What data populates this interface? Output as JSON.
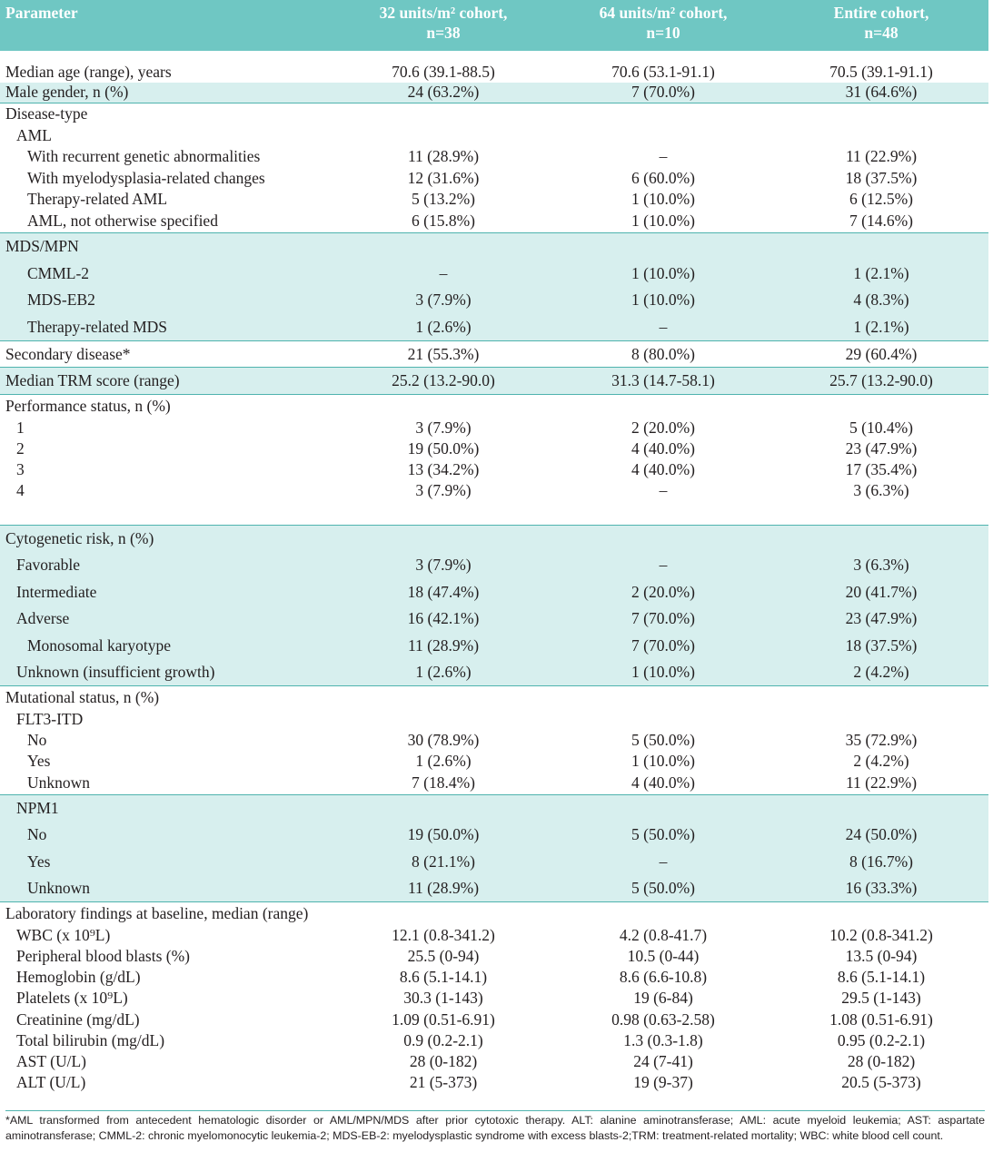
{
  "header": {
    "parameter": "Parameter",
    "col1_line1": "32 units/m² cohort,",
    "col1_line2": "n=38",
    "col2_line1": "64 units/m² cohort,",
    "col2_line2": "n=10",
    "col3_line1": "Entire cohort,",
    "col3_line2": "n=48"
  },
  "rows": [
    {
      "label": "Median age (range), years",
      "v1": "70.6 (39.1-88.5)",
      "v2": "70.6 (53.1-91.1)",
      "v3": "70.5 (39.1-91.1)"
    },
    {
      "label": "Male gender, n (%)",
      "v1": "24 (63.2%)",
      "v2": "7 (70.0%)",
      "v3": "31 (64.6%)"
    },
    {
      "label": "Disease-type",
      "v1": "",
      "v2": "",
      "v3": ""
    },
    {
      "label": "AML",
      "v1": "",
      "v2": "",
      "v3": ""
    },
    {
      "label": "With recurrent genetic abnormalities",
      "v1": "11 (28.9%)",
      "v2": "–",
      "v3": "11 (22.9%)"
    },
    {
      "label": "With myelodysplasia-related changes",
      "v1": "12 (31.6%)",
      "v2": "6 (60.0%)",
      "v3": "18 (37.5%)"
    },
    {
      "label": "Therapy-related AML",
      "v1": "5 (13.2%)",
      "v2": "1 (10.0%)",
      "v3": "6 (12.5%)"
    },
    {
      "label": "AML, not otherwise specified",
      "v1": "6 (15.8%)",
      "v2": "1 (10.0%)",
      "v3": "7 (14.6%)"
    },
    {
      "label": "MDS/MPN",
      "v1": "",
      "v2": "",
      "v3": ""
    },
    {
      "label": "CMML-2",
      "v1": "–",
      "v2": "1 (10.0%)",
      "v3": "1 (2.1%)"
    },
    {
      "label": "MDS-EB2",
      "v1": "3 (7.9%)",
      "v2": "1 (10.0%)",
      "v3": "4 (8.3%)"
    },
    {
      "label": "Therapy-related MDS",
      "v1": "1 (2.6%)",
      "v2": "–",
      "v3": "1 (2.1%)"
    },
    {
      "label": "Secondary disease*",
      "v1": "21 (55.3%)",
      "v2": "8 (80.0%)",
      "v3": "29 (60.4%)"
    },
    {
      "label": "Median TRM score (range)",
      "v1": "25.2 (13.2-90.0)",
      "v2": "31.3 (14.7-58.1)",
      "v3": "25.7 (13.2-90.0)"
    },
    {
      "label": "Performance status, n (%)",
      "v1": "",
      "v2": "",
      "v3": ""
    },
    {
      "label": "1",
      "v1": "3 (7.9%)",
      "v2": "2 (20.0%)",
      "v3": "5 (10.4%)"
    },
    {
      "label": "2",
      "v1": "19 (50.0%)",
      "v2": "4 (40.0%)",
      "v3": "23 (47.9%)"
    },
    {
      "label": "3",
      "v1": "13 (34.2%)",
      "v2": "4 (40.0%)",
      "v3": "17 (35.4%)"
    },
    {
      "label": "4",
      "v1": "3 (7.9%)",
      "v2": "–",
      "v3": "3 (6.3%)"
    },
    {
      "label": "Cytogenetic risk, n (%)",
      "v1": "",
      "v2": "",
      "v3": ""
    },
    {
      "label": "Favorable",
      "v1": "3 (7.9%)",
      "v2": "–",
      "v3": "3 (6.3%)"
    },
    {
      "label": "Intermediate",
      "v1": "18 (47.4%)",
      "v2": "2 (20.0%)",
      "v3": "20 (41.7%)"
    },
    {
      "label": "Adverse",
      "v1": "16 (42.1%)",
      "v2": "7 (70.0%)",
      "v3": "23 (47.9%)"
    },
    {
      "label": "Monosomal karyotype",
      "v1": "11 (28.9%)",
      "v2": "7 (70.0%)",
      "v3": "18 (37.5%)"
    },
    {
      "label": "Unknown (insufficient growth)",
      "v1": "1 (2.6%)",
      "v2": "1 (10.0%)",
      "v3": "2 (4.2%)"
    },
    {
      "label": "Mutational status, n (%)",
      "v1": "",
      "v2": "",
      "v3": ""
    },
    {
      "label": "FLT3-ITD",
      "v1": "",
      "v2": "",
      "v3": ""
    },
    {
      "label": "No",
      "v1": "30 (78.9%)",
      "v2": "5 (50.0%)",
      "v3": "35 (72.9%)"
    },
    {
      "label": "Yes",
      "v1": "1 (2.6%)",
      "v2": "1 (10.0%)",
      "v3": "2 (4.2%)"
    },
    {
      "label": "Unknown",
      "v1": "7 (18.4%)",
      "v2": "4 (40.0%)",
      "v3": "11 (22.9%)"
    },
    {
      "label": "NPM1",
      "v1": "",
      "v2": "",
      "v3": ""
    },
    {
      "label": "No",
      "v1": "19 (50.0%)",
      "v2": "5 (50.0%)",
      "v3": "24 (50.0%)"
    },
    {
      "label": "Yes",
      "v1": "8 (21.1%)",
      "v2": "–",
      "v3": "8 (16.7%)"
    },
    {
      "label": "Unknown",
      "v1": "11 (28.9%)",
      "v2": "5 (50.0%)",
      "v3": "16 (33.3%)"
    },
    {
      "label": "Laboratory findings at baseline, median (range)",
      "v1": "",
      "v2": "",
      "v3": ""
    },
    {
      "label": "WBC (x 10⁹L)",
      "v1": "12.1 (0.8-341.2)",
      "v2": "4.2 (0.8-41.7)",
      "v3": "10.2 (0.8-341.2)"
    },
    {
      "label": "Peripheral blood blasts (%)",
      "v1": "25.5 (0-94)",
      "v2": "10.5 (0-44)",
      "v3": "13.5 (0-94)"
    },
    {
      "label": "Hemoglobin (g/dL)",
      "v1": "8.6 (5.1-14.1)",
      "v2": "8.6 (6.6-10.8)",
      "v3": "8.6 (5.1-14.1)"
    },
    {
      "label": "Platelets (x 10⁹L)",
      "v1": "30.3 (1-143)",
      "v2": "19 (6-84)",
      "v3": "29.5 (1-143)"
    },
    {
      "label": "Creatinine (mg/dL)",
      "v1": "1.09 (0.51-6.91)",
      "v2": "0.98 (0.63-2.58)",
      "v3": "1.08 (0.51-6.91)"
    },
    {
      "label": "Total bilirubin (mg/dL)",
      "v1": "0.9 (0.2-2.1)",
      "v2": "1.3 (0.3-1.8)",
      "v3": "0.95 (0.2-2.1)"
    },
    {
      "label": "AST (U/L)",
      "v1": "28 (0-182)",
      "v2": "24 (7-41)",
      "v3": "28 (0-182)"
    },
    {
      "label": "ALT (U/L)",
      "v1": "21 (5-373)",
      "v2": "19 (9-37)",
      "v3": "20.5 (5-373)"
    }
  ],
  "footnote": "*AML transformed from antecedent hematologic disorder or AML/MPN/MDS after prior cytotoxic therapy. ALT: alanine aminotransferase; AML: acute myeloid leukemia; AST: aspartate aminotransferase; CMML-2: chronic myelomonocytic leukemia-2; MDS-EB-2: myelodysplastic syndrome with excess blasts-2;TRM: treatment-related mortality; WBC: white blood cell count."
}
